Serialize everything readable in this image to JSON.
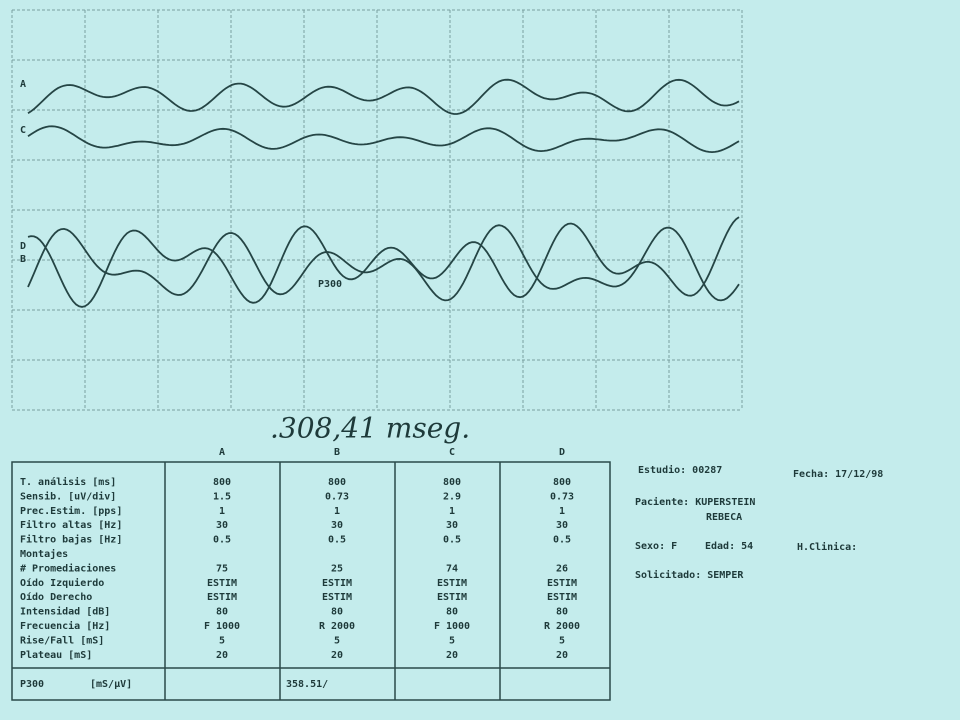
{
  "trace_labels": [
    "A",
    "C",
    "D",
    "B"
  ],
  "marker": "P300",
  "handwritten": ".308,41 mseg.",
  "table": {
    "columns": [
      "A",
      "B",
      "C",
      "D"
    ],
    "rows": [
      [
        "T. análisis [ms]",
        "800",
        "800",
        "800",
        "800"
      ],
      [
        "Sensib.  [uV/div]",
        "1.5",
        "0.73",
        "2.9",
        "0.73"
      ],
      [
        "Prec.Estim. [pps]",
        "1",
        "1",
        "1",
        "1"
      ],
      [
        "Filtro altas [Hz]",
        "30",
        "30",
        "30",
        "30"
      ],
      [
        "Filtro bajas [Hz]",
        "0.5",
        "0.5",
        "0.5",
        "0.5"
      ],
      [
        "Montajes"
      ],
      [
        "# Promediaciones",
        "75",
        "25",
        "74",
        "26"
      ],
      [
        "Oído Izquierdo",
        "ESTIM",
        "ESTIM",
        "ESTIM",
        "ESTIM"
      ],
      [
        "Oído Derecho",
        "ESTIM",
        "ESTIM",
        "ESTIM",
        "ESTIM"
      ],
      [
        "Intensidad [dB]",
        "80",
        "80",
        "80",
        "80"
      ],
      [
        "Frecuencia [Hz]",
        "F 1000",
        "R 2000",
        "F 1000",
        "R 2000"
      ],
      [
        "Rise/Fall  [mS]",
        "5",
        "5",
        "5",
        "5"
      ],
      [
        "Plateau    [mS]",
        "20",
        "20",
        "20",
        "20"
      ]
    ],
    "footer": [
      "P300",
      "[mS/µV]",
      "358.51/"
    ]
  },
  "info": {
    "estudio": "Estudio: 00287",
    "fecha": "Fecha: 17/12/98",
    "paciente": "Paciente: KUPERSTEIN",
    "paciente2": "REBECA",
    "sexo": "Sexo: F",
    "edad": "Edad: 54",
    "hclinica": "H.Clinica:",
    "solicitado": "Solicitado: SEMPER"
  }
}
